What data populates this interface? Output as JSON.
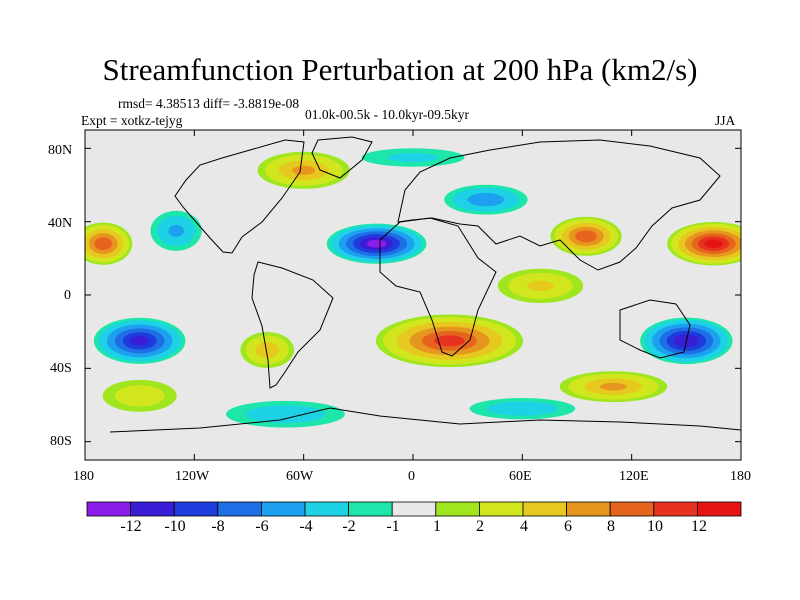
{
  "chart_data": {
    "type": "heatmap",
    "title": "Streamfunction Perturbation at 200 hPa (km2/s)",
    "stats": "rmsd= 4.38513 diff= -3.8819e-08",
    "experiment": "Expt = xotkz-tejyg",
    "period": "01.0k-00.5k - 10.0kyr-09.5kyr",
    "season": "JJA",
    "x_tick_labels": [
      "180",
      "120W",
      "60W",
      "0",
      "60E",
      "120E",
      "180"
    ],
    "x_tick_values": [
      -180,
      -120,
      -60,
      0,
      60,
      120,
      180
    ],
    "y_tick_labels": [
      "80N",
      "40N",
      "0",
      "40S",
      "80S"
    ],
    "y_tick_values": [
      80,
      40,
      0,
      -40,
      -80
    ],
    "xlim": [
      -180,
      180
    ],
    "ylim": [
      -90,
      90
    ],
    "colorbar": {
      "labels": [
        "-12",
        "-10",
        "-8",
        "-6",
        "-4",
        "-2",
        "-1",
        "1",
        "2",
        "4",
        "6",
        "8",
        "10",
        "12"
      ],
      "levels": [
        -12,
        -10,
        -8,
        -6,
        -4,
        -2,
        -1,
        1,
        2,
        4,
        6,
        8,
        10,
        12
      ],
      "colors": [
        "#8a1ee8",
        "#3a1ed6",
        "#1e3cdc",
        "#1e6ee6",
        "#1ea0f0",
        "#1ed2e6",
        "#1ee6aa",
        "#e8e8e8",
        "#a0e61e",
        "#d2e61e",
        "#e6c81e",
        "#e6961e",
        "#e6641e",
        "#e6321e",
        "#e61414"
      ]
    },
    "anomalies": [
      {
        "lon": -20,
        "lat": 28,
        "value": -12,
        "rlon": 30,
        "rlat": 12
      },
      {
        "lon": 150,
        "lat": -25,
        "value": -11,
        "rlon": 28,
        "rlat": 14
      },
      {
        "lon": 165,
        "lat": 28,
        "value": 12,
        "rlon": 28,
        "rlat": 13
      },
      {
        "lon": 20,
        "lat": -25,
        "value": 10,
        "rlon": 45,
        "rlat": 16
      },
      {
        "lon": -170,
        "lat": 28,
        "value": 9,
        "rlon": 18,
        "rlat": 13
      },
      {
        "lon": 95,
        "lat": 32,
        "value": 9,
        "rlon": 22,
        "rlat": 12
      },
      {
        "lon": -150,
        "lat": -25,
        "value": -10,
        "rlon": 28,
        "rlat": 14
      },
      {
        "lon": -60,
        "lat": 68,
        "value": 6,
        "rlon": 30,
        "rlat": 12
      },
      {
        "lon": 40,
        "lat": 52,
        "value": -5,
        "rlon": 28,
        "rlat": 10
      },
      {
        "lon": -130,
        "lat": 35,
        "value": -4,
        "rlon": 18,
        "rlat": 14
      },
      {
        "lon": -80,
        "lat": -30,
        "value": 5,
        "rlon": 18,
        "rlat": 12
      },
      {
        "lon": -150,
        "lat": -55,
        "value": 3,
        "rlon": 28,
        "rlat": 12
      },
      {
        "lon": 110,
        "lat": -50,
        "value": 6,
        "rlon": 35,
        "rlat": 10
      },
      {
        "lon": -70,
        "lat": -65,
        "value": -3,
        "rlon": 45,
        "rlat": 10
      },
      {
        "lon": 60,
        "lat": -62,
        "value": -3,
        "rlon": 40,
        "rlat": 8
      },
      {
        "lon": 70,
        "lat": 5,
        "value": 4,
        "rlon": 30,
        "rlat": 12
      },
      {
        "lon": 0,
        "lat": 75,
        "value": -2,
        "rlon": 45,
        "rlat": 8
      }
    ]
  }
}
